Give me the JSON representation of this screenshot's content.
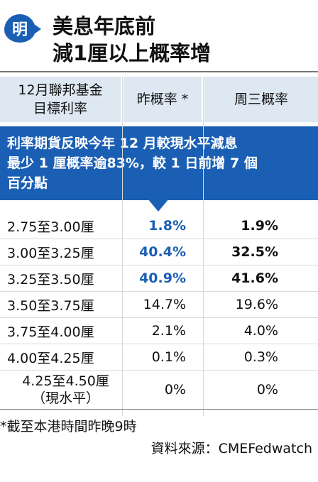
{
  "header": {
    "logo_char": "明",
    "title_line1": "美息年底前",
    "title_line2": "減1厘以上概率增"
  },
  "columns": {
    "col1_line1": "12月聯邦基金",
    "col1_line2": "目標利率",
    "col2": "昨概率 *",
    "col3": "周三概率"
  },
  "banner": {
    "line1": "利率期貨反映今年 12 月較現水平減息",
    "line2": "最少 1 厘概率逾83%，較 1 日前增 7 個",
    "line3": "百分點"
  },
  "rows": [
    {
      "range": "2.75至3.00厘",
      "yesterday": "1.8%",
      "wednesday": "1.9%"
    },
    {
      "range": "3.00至3.25厘",
      "yesterday": "40.4%",
      "wednesday": "32.5%"
    },
    {
      "range": "3.25至3.50厘",
      "yesterday": "40.9%",
      "wednesday": "41.6%"
    },
    {
      "range": "3.50至3.75厘",
      "yesterday": "14.7%",
      "wednesday": "19.6%"
    },
    {
      "range": "3.75至4.00厘",
      "yesterday": "2.1%",
      "wednesday": "4.0%"
    },
    {
      "range": "4.00至4.25厘",
      "yesterday": "0.1%",
      "wednesday": "0.3%"
    },
    {
      "range": "4.25至4.50厘",
      "range_note": "（現水平）",
      "yesterday": "0%",
      "wednesday": "0%"
    }
  ],
  "footer": {
    "footnote": "*截至本港時間昨晚9時",
    "source": "資料來源：CMEFedwatch"
  },
  "colors": {
    "accent": "#1a5fb4",
    "header_bg": "#dde8f3"
  }
}
